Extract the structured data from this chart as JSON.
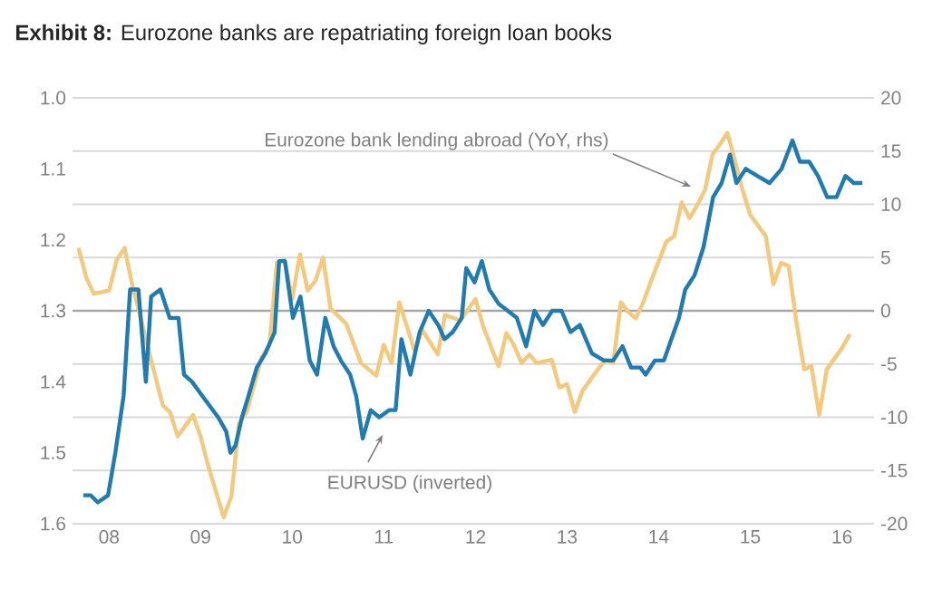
{
  "chart_data": {
    "type": "line",
    "title": "**Exhibit 8:**  Eurozone banks are repatriating foreign loan books",
    "xlim": [
      "2008-02-06",
      "2016-11-06"
    ],
    "xticks": [
      {
        "value": "2008-07",
        "label": "08"
      },
      {
        "value": "2009-07",
        "label": "09"
      },
      {
        "value": "2010-07",
        "label": "10"
      },
      {
        "value": "2011-07",
        "label": "11"
      },
      {
        "value": "2012-07",
        "label": "12"
      },
      {
        "value": "2013-07",
        "label": "13"
      },
      {
        "value": "2014-07",
        "label": "14"
      },
      {
        "value": "2015-07",
        "label": "15"
      },
      {
        "value": "2016-07",
        "label": "16"
      }
    ],
    "ylim": [
      1.6,
      1.0
    ],
    "yticks": [
      {
        "value": 1.0,
        "label": "1.0"
      },
      1.1,
      1.2,
      1.3,
      1.4,
      1.5,
      1.6
    ],
    "y2lim": [
      -20,
      20
    ],
    "y2ticks": [
      -20,
      -15,
      -10,
      -5,
      0,
      5,
      10,
      15,
      20
    ],
    "grid": "y",
    "ref_lines": [
      {
        "axis": "y2",
        "value": 0,
        "color": "#a6a6a6"
      }
    ],
    "series": [
      {
        "color": "#f2c97d",
        "axis": "y2",
        "x": [
          "2008-03",
          "2008-04",
          "2008-05",
          "2008-07",
          "2008-08",
          "2008-09",
          "2008-10",
          "2008-12",
          "2009-01",
          "2009-02",
          "2009-03",
          "2009-04",
          "2009-06",
          "2009-07",
          "2009-08",
          "2009-10",
          "2009-11",
          "2009-12",
          "2010-01",
          "2010-03",
          "2010-04",
          "2010-05",
          "2010-06",
          "2010-07",
          "2010-08",
          "2010-09",
          "2010-10",
          "2010-11",
          "2010-12",
          "2011-02",
          "2011-04",
          "2011-06",
          "2011-07",
          "2011-08",
          "2011-09",
          "2011-11",
          "2011-12",
          "2012-02",
          "2012-03",
          "2012-05",
          "2012-07",
          "2012-08",
          "2012-10",
          "2012-11",
          "2012-12",
          "2013-01",
          "2013-02",
          "2013-03",
          "2013-05",
          "2013-06",
          "2013-07",
          "2013-08",
          "2013-09",
          "2013-11",
          "2013-12",
          "2014-01",
          "2014-02",
          "2014-03",
          "2014-04",
          "2014-05",
          "2014-06",
          "2014-08",
          "2014-09",
          "2014-10",
          "2014-11",
          "2014-12",
          "2015-01",
          "2015-02",
          "2015-03",
          "2015-04",
          "2015-05",
          "2015-06",
          "2015-07",
          "2015-09",
          "2015-10",
          "2015-11",
          "2015-12",
          "2016-01",
          "2016-02",
          "2016-03",
          "2016-04",
          "2016-05",
          "2016-07",
          "2016-08"
        ],
        "values": [
          5.9,
          3.1,
          1.6,
          1.9,
          4.8,
          5.9,
          2.5,
          -3.2,
          -6.1,
          -8.9,
          -9.5,
          -11.8,
          -9.8,
          -11.8,
          -14.6,
          -19.4,
          -17.4,
          -10.6,
          -9.5,
          -4.4,
          -3.2,
          4.5,
          4.8,
          1.1,
          5.3,
          1.9,
          2.8,
          5.0,
          0.2,
          -1.2,
          -4.9,
          -6.1,
          -3.2,
          -4.9,
          0.8,
          -3.8,
          -1.8,
          -4.1,
          -0.4,
          -0.9,
          1.1,
          -1.5,
          -5.2,
          -2.1,
          -3.2,
          -4.9,
          -4.1,
          -4.9,
          -4.6,
          -7.2,
          -6.9,
          -9.5,
          -7.5,
          -5.5,
          -4.6,
          -4.9,
          0.8,
          -0.1,
          -0.7,
          0.8,
          2.8,
          6.5,
          7.0,
          10.2,
          8.7,
          9.9,
          11.3,
          14.7,
          15.6,
          16.7,
          14.1,
          11.3,
          9.0,
          7.0,
          2.5,
          4.5,
          4.2,
          -1.1,
          -5.5,
          -5.2,
          -9.8,
          -5.5,
          -3.5,
          -2.2
        ]
      },
      {
        "color": "#1f7bb0",
        "x": [
          "2008-03-20",
          "2008-04-19",
          "2008-05-17",
          "2008-06-27",
          "2008-07-26",
          "2008-08-28",
          "2008-09-23",
          "2008-10-26",
          "2008-11-25",
          "2008-12-16",
          "2009-01-22",
          "2009-02-28",
          "2009-04-04",
          "2009-04-26",
          "2009-05-28",
          "2009-07-08",
          "2009-09-09",
          "2009-10-11",
          "2009-10-28",
          "2009-11-17",
          "2009-12-13",
          "2010-01-08",
          "2010-02-10",
          "2010-03-16",
          "2010-04-22",
          "2010-05-10",
          "2010-06-02",
          "2010-07-04",
          "2010-08-03",
          "2010-09-09",
          "2010-10-08",
          "2010-11-10",
          "2010-12-13",
          "2011-01-11",
          "2011-02-17",
          "2011-03-13",
          "2011-04-08",
          "2011-05-10",
          "2011-06-13",
          "2011-07-22",
          "2011-08-17",
          "2011-09-09",
          "2011-10-15",
          "2011-11-21",
          "2011-12-27",
          "2012-02-03",
          "2012-02-28",
          "2012-04-01",
          "2012-05-07",
          "2012-05-25",
          "2012-06-27",
          "2012-07-26",
          "2012-08-25",
          "2012-10-01",
          "2012-11-07",
          "2012-12-13",
          "2013-01-19",
          "2013-02-21",
          "2013-03-27",
          "2013-05-03",
          "2013-06-09",
          "2013-07-15",
          "2013-08-21",
          "2013-10-08",
          "2013-11-25",
          "2014-01-01",
          "2014-02-07",
          "2014-03-13",
          "2014-04-19",
          "2014-05-10",
          "2014-06-16",
          "2014-07-22",
          "2014-09-20",
          "2014-10-15",
          "2014-11-21",
          "2014-12-27",
          "2015-02-03",
          "2015-03-09",
          "2015-04-11",
          "2015-05-07",
          "2015-06-13",
          "2015-07-29",
          "2015-09-16",
          "2015-11-03",
          "2015-12-16",
          "2016-01-15",
          "2016-02-21",
          "2016-03-27",
          "2016-05-03",
          "2016-06-09",
          "2016-07-15",
          "2016-08-17",
          "2016-09-20"
        ],
        "values": [
          1.56,
          1.56,
          1.57,
          1.56,
          1.5,
          1.42,
          1.27,
          1.27,
          1.4,
          1.28,
          1.27,
          1.31,
          1.31,
          1.39,
          1.4,
          1.42,
          1.45,
          1.47,
          1.5,
          1.49,
          1.45,
          1.42,
          1.38,
          1.36,
          1.33,
          1.23,
          1.23,
          1.31,
          1.28,
          1.37,
          1.39,
          1.31,
          1.35,
          1.37,
          1.39,
          1.42,
          1.48,
          1.44,
          1.45,
          1.44,
          1.44,
          1.34,
          1.39,
          1.33,
          1.3,
          1.32,
          1.34,
          1.33,
          1.31,
          1.24,
          1.26,
          1.23,
          1.27,
          1.29,
          1.3,
          1.31,
          1.35,
          1.3,
          1.32,
          1.3,
          1.3,
          1.33,
          1.32,
          1.36,
          1.37,
          1.37,
          1.35,
          1.38,
          1.38,
          1.39,
          1.37,
          1.37,
          1.31,
          1.27,
          1.25,
          1.21,
          1.14,
          1.12,
          1.08,
          1.12,
          1.1,
          1.11,
          1.12,
          1.1,
          1.06,
          1.09,
          1.09,
          1.11,
          1.14,
          1.14,
          1.11,
          1.12,
          1.12
        ]
      }
    ],
    "annotations": [
      "Eurozone bank lending abroad (YoY, rhs)",
      "EURUSD (inverted)"
    ]
  }
}
